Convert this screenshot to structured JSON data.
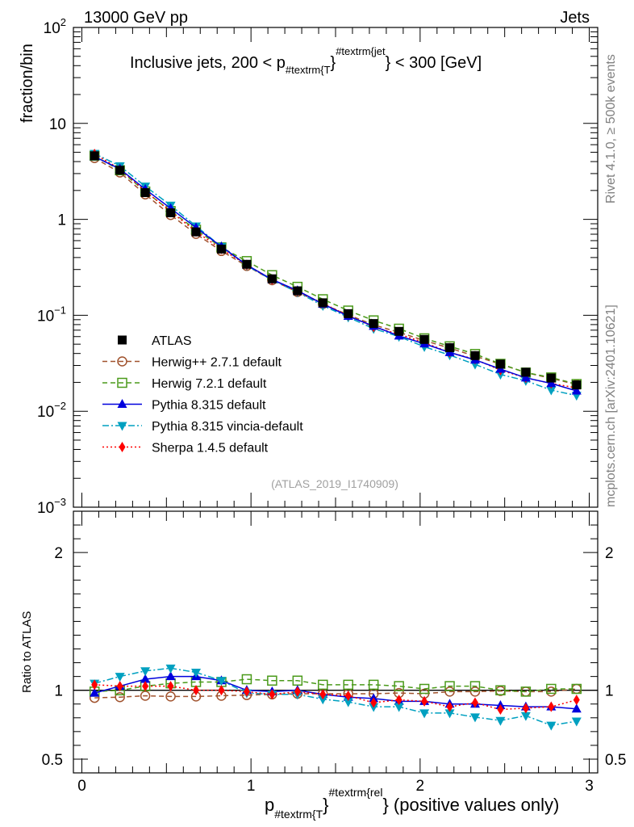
{
  "header": {
    "left": "13000 GeV pp",
    "right": "Jets"
  },
  "side_labels": {
    "rivet": "Rivet 4.1.0, ≥ 500k events",
    "mcplots": "mcplots.cern.ch [arXiv:2401.10621]"
  },
  "analysis_id": "(ATLAS_2019_I1740909)",
  "colors": {
    "ATLAS": "#000000",
    "herwigpp": "#a0522d",
    "herwig7": "#4a9a1a",
    "pythia": "#0000dd",
    "vincia": "#00a0c0",
    "sherpa": "#ff0000"
  },
  "chart_data": [
    {
      "type": "line",
      "name": "main",
      "title_parts": {
        "prefix": "Inclusive jets, 200 < p",
        "sub": "#textrm{T",
        "sup": "#textrm{jet",
        "suffix": "} < 300 [GeV]"
      },
      "ylabel": "fraction/bin",
      "yscale": "log",
      "ylim": [
        0.001,
        100
      ],
      "xlim": [
        -0.05,
        3.05
      ],
      "ytick_labels": [
        {
          "v": 100,
          "base": "10",
          "exp": "2"
        },
        {
          "v": 10,
          "base": "10",
          "exp": ""
        },
        {
          "v": 1,
          "base": "1",
          "exp": ""
        },
        {
          "v": 0.1,
          "base": "10",
          "exp": "−1"
        },
        {
          "v": 0.01,
          "base": "10",
          "exp": "−2"
        },
        {
          "v": 0.001,
          "base": "10",
          "exp": "−3"
        }
      ],
      "x": [
        0.075,
        0.225,
        0.375,
        0.525,
        0.675,
        0.825,
        0.975,
        1.125,
        1.275,
        1.425,
        1.575,
        1.725,
        1.875,
        2.025,
        2.175,
        2.325,
        2.475,
        2.625,
        2.775,
        2.925
      ],
      "series": [
        {
          "key": "ATLAS",
          "name": "ATLAS",
          "marker": "square-filled",
          "dash": "none",
          "values": [
            4.6,
            3.25,
            1.9,
            1.17,
            0.74,
            0.49,
            0.34,
            0.24,
            0.18,
            0.135,
            0.104,
            0.082,
            0.068,
            0.056,
            0.046,
            0.038,
            0.031,
            0.0255,
            0.0222,
            0.0188
          ]
        },
        {
          "key": "herwigpp",
          "name": "Herwig++ 2.7.1 default",
          "marker": "circle-open",
          "dash": "6,4",
          "values": [
            4.35,
            3.08,
            1.82,
            1.11,
            0.705,
            0.468,
            0.327,
            0.232,
            0.175,
            0.131,
            0.101,
            0.0795,
            0.0665,
            0.0545,
            0.0455,
            0.0375,
            0.031,
            0.0253,
            0.022,
            0.019
          ]
        },
        {
          "key": "herwig7",
          "name": "Herwig 7.2.1 default",
          "marker": "square-open",
          "dash": "6,4",
          "values": [
            4.6,
            3.25,
            1.95,
            1.22,
            0.78,
            0.51,
            0.367,
            0.262,
            0.198,
            0.147,
            0.112,
            0.0885,
            0.0725,
            0.0575,
            0.0475,
            0.0395,
            0.0312,
            0.0253,
            0.0225,
            0.0192
          ]
        },
        {
          "key": "pythia",
          "name": "Pythia 8.315 default",
          "marker": "triangle-up",
          "dash": "none",
          "values": [
            4.5,
            3.35,
            2.06,
            1.3,
            0.82,
            0.52,
            0.335,
            0.236,
            0.181,
            0.131,
            0.098,
            0.077,
            0.061,
            0.0505,
            0.041,
            0.0343,
            0.0275,
            0.0223,
            0.0195,
            0.0163
          ]
        },
        {
          "key": "vincia",
          "name": "Pythia 8.315 vincia-default",
          "marker": "triangle-down",
          "dash": "8,3,2,3",
          "values": [
            4.85,
            3.6,
            2.21,
            1.4,
            0.85,
            0.52,
            0.33,
            0.233,
            0.174,
            0.126,
            0.0955,
            0.0725,
            0.06,
            0.047,
            0.0385,
            0.0308,
            0.0242,
            0.0208,
            0.0166,
            0.0146
          ]
        },
        {
          "key": "sherpa",
          "name": "Sherpa 1.4.5 default",
          "marker": "diamond",
          "dash": "2,3",
          "values": [
            4.8,
            3.35,
            1.96,
            1.21,
            0.745,
            0.49,
            0.336,
            0.235,
            0.178,
            0.133,
            0.0995,
            0.0755,
            0.0635,
            0.052,
            0.041,
            0.0348,
            0.0268,
            0.0223,
            0.0195,
            0.0175
          ]
        }
      ]
    },
    {
      "type": "line",
      "name": "ratio",
      "ylabel": "Ratio to ATLAS",
      "xlabel_parts": {
        "prefix": "p",
        "sub": "#textrm{T",
        "sup": "#textrm{rel",
        "suffix": "} (positive values only)"
      },
      "ylim": [
        0.4,
        2.3
      ],
      "xlim": [
        -0.05,
        3.05
      ],
      "yticks": [
        0.5,
        1,
        2
      ],
      "ytick_labels": [
        "0.5",
        "1",
        "2"
      ],
      "xticks": [
        0,
        1,
        2,
        3
      ],
      "xtick_labels": [
        "0",
        "1",
        "2",
        "3"
      ],
      "x": [
        0.075,
        0.225,
        0.375,
        0.525,
        0.675,
        0.825,
        0.975,
        1.125,
        1.275,
        1.425,
        1.575,
        1.725,
        1.875,
        2.025,
        2.175,
        2.325,
        2.475,
        2.625,
        2.775,
        2.925
      ],
      "series": [
        {
          "key": "herwigpp",
          "values": [
            0.945,
            0.95,
            0.96,
            0.955,
            0.955,
            0.96,
            0.965,
            0.97,
            0.975,
            0.975,
            0.975,
            0.975,
            0.98,
            0.975,
            0.99,
            0.99,
            0.995,
            0.99,
            0.99,
            1.01
          ]
        },
        {
          "key": "herwig7",
          "values": [
            0.99,
            1.0,
            1.03,
            1.05,
            1.06,
            1.06,
            1.08,
            1.07,
            1.07,
            1.04,
            1.04,
            1.04,
            1.03,
            1.01,
            1.03,
            1.03,
            1.0,
            0.99,
            1.01,
            1.01
          ]
        },
        {
          "key": "pythia",
          "values": [
            0.98,
            1.03,
            1.08,
            1.1,
            1.1,
            1.07,
            1.0,
            0.99,
            1.0,
            0.97,
            0.95,
            0.94,
            0.92,
            0.92,
            0.9,
            0.9,
            0.89,
            0.88,
            0.88,
            0.865
          ]
        },
        {
          "key": "vincia",
          "values": [
            1.05,
            1.1,
            1.14,
            1.16,
            1.13,
            1.07,
            0.98,
            0.97,
            0.97,
            0.935,
            0.915,
            0.88,
            0.88,
            0.835,
            0.835,
            0.805,
            0.78,
            0.815,
            0.745,
            0.775
          ]
        },
        {
          "key": "sherpa",
          "values": [
            1.04,
            1.03,
            1.03,
            1.03,
            1.0,
            1.0,
            0.99,
            0.97,
            0.99,
            0.97,
            0.96,
            0.91,
            0.93,
            0.92,
            0.88,
            0.91,
            0.86,
            0.87,
            0.88,
            0.93
          ]
        }
      ]
    }
  ]
}
